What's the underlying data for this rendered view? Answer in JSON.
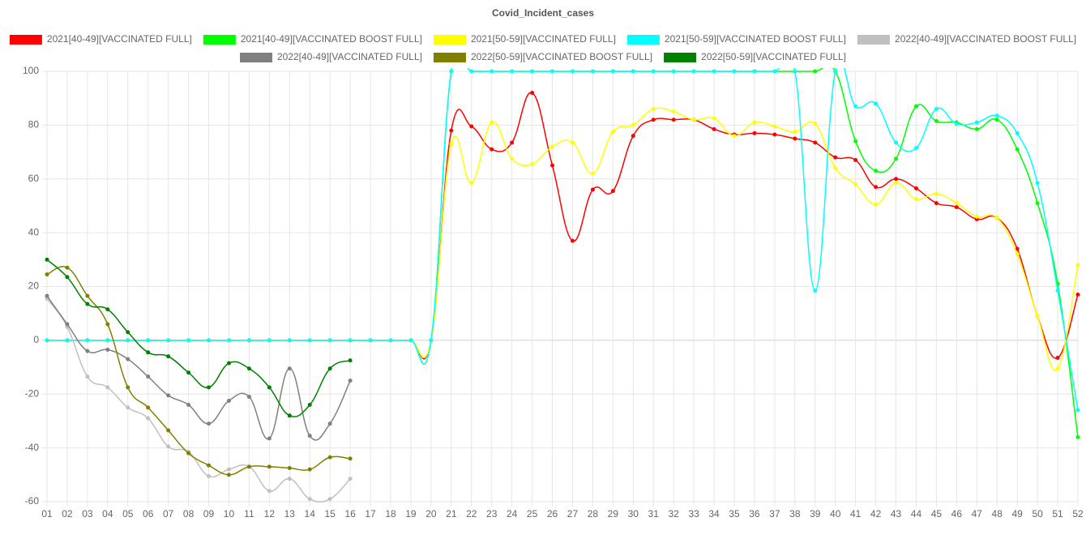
{
  "chart_data": {
    "type": "line",
    "title": "Covid_Incident_cases",
    "categories": [
      "01",
      "02",
      "03",
      "04",
      "05",
      "06",
      "07",
      "08",
      "09",
      "10",
      "11",
      "12",
      "13",
      "14",
      "15",
      "16",
      "17",
      "18",
      "19",
      "20",
      "21",
      "22",
      "23",
      "24",
      "25",
      "26",
      "27",
      "28",
      "29",
      "30",
      "31",
      "32",
      "33",
      "34",
      "35",
      "36",
      "37",
      "38",
      "39",
      "40",
      "41",
      "42",
      "43",
      "44",
      "45",
      "46",
      "47",
      "48",
      "49",
      "50",
      "51",
      "52"
    ],
    "ylim": [
      -60,
      100
    ],
    "yticks": [
      -60,
      -40,
      -20,
      0,
      20,
      40,
      60,
      80,
      100
    ],
    "grid": true,
    "legend": "top",
    "series": [
      {
        "name": "2021[40-49][VACCINATED FULL]",
        "color": "#ff0000",
        "values": [
          0,
          0,
          0,
          0,
          0,
          0,
          0,
          0,
          0,
          0,
          0,
          0,
          0,
          0,
          0,
          0,
          0,
          0,
          0,
          0,
          78,
          79.5,
          71,
          73.5,
          92,
          65,
          37,
          56,
          55.5,
          76,
          82,
          82,
          82,
          78.5,
          76.5,
          77,
          76.5,
          75,
          73.5,
          68,
          67,
          57,
          60,
          56.5,
          51,
          49.5,
          45,
          45.5,
          34,
          9,
          -6.5,
          17
        ]
      },
      {
        "name": "2021[40-49][VACCINATED BOOST FULL]",
        "color": "#00ff00",
        "values": [
          0,
          0,
          0,
          0,
          0,
          0,
          0,
          0,
          0,
          0,
          0,
          0,
          0,
          0,
          0,
          0,
          0,
          0,
          0,
          0,
          100,
          100,
          100,
          100,
          100,
          100,
          100,
          100,
          100,
          100,
          100,
          100,
          100,
          100,
          100,
          100,
          100,
          100,
          100,
          100,
          74,
          63,
          67.5,
          87,
          81.5,
          81,
          78.5,
          82,
          71,
          51,
          21,
          -36
        ]
      },
      {
        "name": "2021[50-59][VACCINATED FULL]",
        "color": "#ffff00",
        "values": [
          0,
          0,
          0,
          0,
          0,
          0,
          0,
          0,
          0,
          0,
          0,
          0,
          0,
          0,
          0,
          0,
          0,
          0,
          0,
          0,
          73,
          58.5,
          81,
          67.5,
          65.5,
          72,
          73.5,
          62,
          77.5,
          80,
          86,
          85,
          82,
          82.5,
          76,
          81,
          79.5,
          77.5,
          80.5,
          64,
          58,
          50.5,
          58.5,
          52.5,
          54.5,
          51,
          46,
          45.5,
          32,
          9,
          -10.5,
          28
        ]
      },
      {
        "name": "2021[50-59][VACCINATED BOOST FULL]",
        "color": "#00ffff",
        "values": [
          0,
          0,
          0,
          0,
          0,
          0,
          0,
          0,
          0,
          0,
          0,
          0,
          0,
          0,
          0,
          0,
          0,
          0,
          0,
          0,
          100,
          100,
          100,
          100,
          100,
          100,
          100,
          100,
          100,
          100,
          100,
          100,
          100,
          100,
          100,
          100,
          100,
          100,
          18.5,
          100,
          87,
          88,
          73.5,
          71.5,
          86,
          80.5,
          81,
          83.5,
          77,
          58.5,
          18.5,
          -26
        ]
      },
      {
        "name": "2022[40-49][VACCINATED BOOST FULL]",
        "color": "#c0c0c0",
        "values": [
          15.5,
          5,
          -13.5,
          -17.5,
          -25,
          -29,
          -39.5,
          -41.5,
          -50.5,
          -48,
          -47,
          -56,
          -51.5,
          -59,
          -59,
          -51.5,
          null,
          null,
          null,
          null,
          null,
          null,
          null,
          null,
          null,
          null,
          null,
          null,
          null,
          null,
          null,
          null,
          null,
          null,
          null,
          null,
          null,
          null,
          null,
          null,
          null,
          null,
          null,
          null,
          null,
          null,
          null,
          null,
          null,
          null,
          null,
          null
        ]
      },
      {
        "name": "2022[40-49][VACCINATED FULL]",
        "color": "#808080",
        "values": [
          16.5,
          6,
          -4,
          -3.5,
          -7,
          -13.5,
          -20.5,
          -24,
          -31,
          -22.5,
          -21,
          -36.5,
          -10.5,
          -35.5,
          -31,
          -15,
          null,
          null,
          null,
          null,
          null,
          null,
          null,
          null,
          null,
          null,
          null,
          null,
          null,
          null,
          null,
          null,
          null,
          null,
          null,
          null,
          null,
          null,
          null,
          null,
          null,
          null,
          null,
          null,
          null,
          null,
          null,
          null,
          null,
          null,
          null,
          null
        ]
      },
      {
        "name": "2022[50-59][VACCINATED BOOST FULL]",
        "color": "#808000",
        "values": [
          24.5,
          27,
          16.5,
          6,
          -17.5,
          -25,
          -33.5,
          -42,
          -46.5,
          -50,
          -47,
          -47,
          -47.5,
          -48,
          -43.5,
          -44,
          null,
          null,
          null,
          null,
          null,
          null,
          null,
          null,
          null,
          null,
          null,
          null,
          null,
          null,
          null,
          null,
          null,
          null,
          null,
          null,
          null,
          null,
          null,
          null,
          null,
          null,
          null,
          null,
          null,
          null,
          null,
          null,
          null,
          null,
          null,
          null
        ]
      },
      {
        "name": "2022[50-59][VACCINATED FULL]",
        "color": "#008000",
        "values": [
          30,
          23.5,
          13.5,
          11.5,
          3,
          -4.5,
          -6,
          -12,
          -17.5,
          -8.5,
          -10.5,
          -17.5,
          -28,
          -24,
          -10.5,
          -7.5,
          null,
          null,
          null,
          null,
          null,
          null,
          null,
          null,
          null,
          null,
          null,
          null,
          null,
          null,
          null,
          null,
          null,
          null,
          null,
          null,
          null,
          null,
          null,
          null,
          null,
          null,
          null,
          null,
          null,
          null,
          null,
          null,
          null,
          null,
          null,
          null
        ]
      }
    ]
  }
}
